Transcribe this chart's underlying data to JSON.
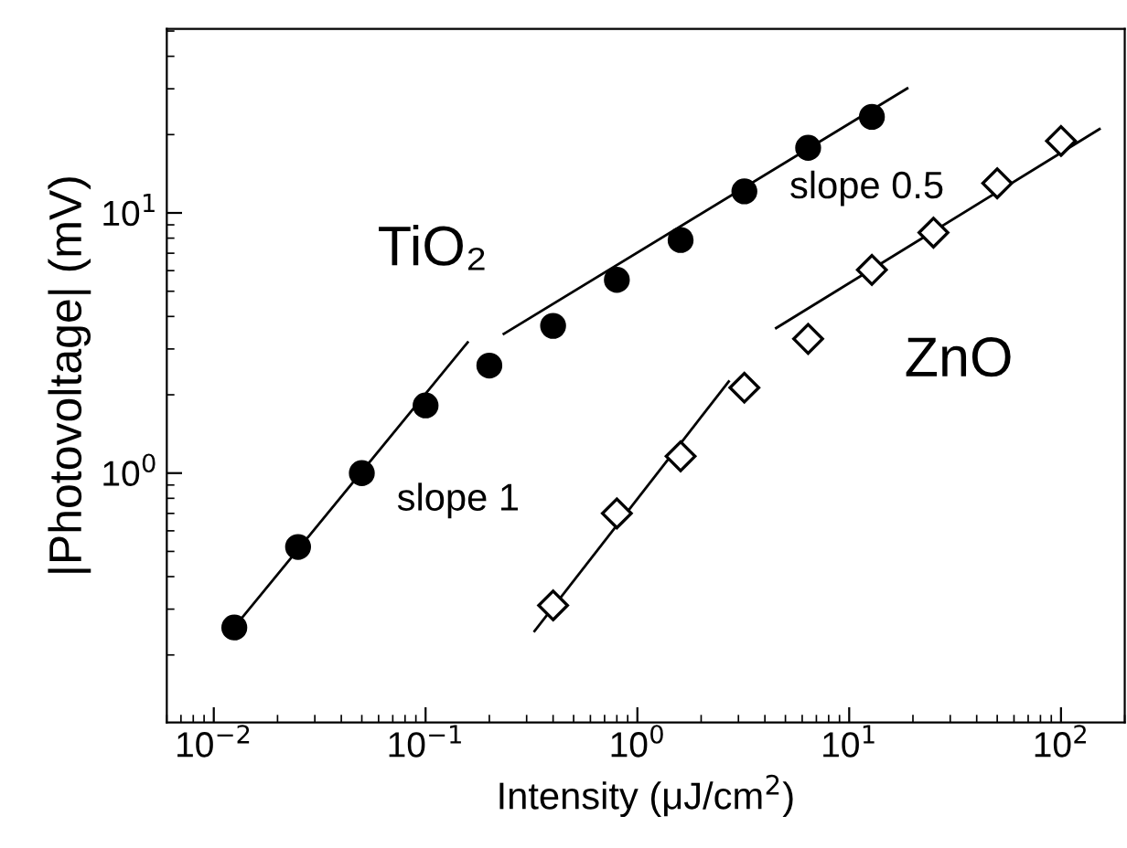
{
  "chart_data": {
    "type": "scatter",
    "xlabel": "Intensity (μJ/cm$^{2}$)",
    "ylabel": "|Photovoltage| (mV)",
    "log": "xy",
    "grid": false,
    "legend": false,
    "xlim": [
      0.006,
      200
    ],
    "ylim": [
      0.11,
      51
    ],
    "xticks": [
      {
        "value": 0.01,
        "label": "10$^{−2}$"
      },
      {
        "value": 0.1,
        "label": "10$^{−1}$"
      },
      {
        "value": 1,
        "label": "10$^{0}$"
      },
      {
        "value": 10,
        "label": "10$^{1}$"
      },
      {
        "value": 100,
        "label": "10$^{2}$"
      }
    ],
    "yticks": [
      {
        "value": 1,
        "label": "10$^{0}$"
      },
      {
        "value": 10,
        "label": "10$^{1}$"
      }
    ],
    "series": [
      {
        "name": "TiO₂",
        "marker": "circle",
        "color": "#000000",
        "x": [
          0.0125,
          0.025,
          0.05,
          0.1,
          0.2,
          0.4,
          0.8,
          1.6,
          3.2,
          6.4,
          12.8
        ],
        "values": [
          0.255,
          0.52,
          1.0,
          1.82,
          2.59,
          3.68,
          5.53,
          7.87,
          12.1,
          17.8,
          23.4
        ]
      },
      {
        "name": "ZnO",
        "marker": "diamond",
        "color": "#000000",
        "x": [
          0.4,
          0.8,
          1.6,
          3.2,
          6.4,
          12.8,
          25,
          50,
          100
        ],
        "values": [
          0.31,
          0.7,
          1.16,
          2.13,
          3.28,
          6.04,
          8.4,
          13.0,
          18.9
        ]
      },
      {
        "name": "slope 1",
        "type": "line",
        "color": "#000000",
        "x": [
          0.0137,
          0.158
        ],
        "values": [
          0.28,
          3.18
        ]
      },
      {
        "name": "slope 0.5",
        "type": "line",
        "color": "#000000",
        "x": [
          0.234,
          18.8
        ],
        "values": [
          3.43,
          30.1
        ]
      },
      {
        "type": "line",
        "color": "#000000",
        "x": [
          0.327,
          2.7
        ],
        "values": [
          0.247,
          2.25
        ]
      },
      {
        "type": "line",
        "color": "#000000",
        "x": [
          4.52,
          152
        ],
        "values": [
          3.61,
          21.0
        ]
      }
    ]
  }
}
